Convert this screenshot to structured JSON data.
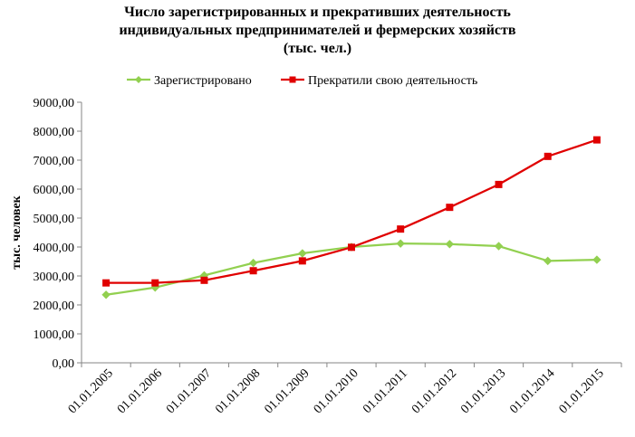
{
  "chart_data": {
    "type": "line",
    "title_lines": [
      "Число зарегистрированных  и прекративших деятельность",
      "индивидуальных предпринимателей и фермерских хозяйств",
      "(тыс. чел.)"
    ],
    "ylabel": "тыс. человек",
    "xlabel": "",
    "ylim": [
      0,
      9000
    ],
    "y_ticks": [
      "0,00",
      "1000,00",
      "2000,00",
      "3000,00",
      "4000,00",
      "5000,00",
      "6000,00",
      "7000,00",
      "8000,00",
      "9000,00"
    ],
    "categories": [
      "01.01.2005",
      "01.01.2006",
      "01.01.2007",
      "01.01.2008",
      "01.01.2009",
      "01.01.2010",
      "01.01.2011",
      "01.01.2012",
      "01.01.2013",
      "01.01.2014",
      "01.01.2015"
    ],
    "legend_position": "top",
    "grid": false,
    "series": [
      {
        "name": "Зарегистрировано",
        "color": "#92D050",
        "marker": "diamond",
        "values": [
          2350,
          2600,
          3020,
          3450,
          3780,
          4000,
          4120,
          4100,
          4030,
          3520,
          3560
        ]
      },
      {
        "name": "Прекратили свою деятельность",
        "color": "#E00000",
        "marker": "square",
        "values": [
          2760,
          2760,
          2850,
          3180,
          3520,
          3990,
          4620,
          5370,
          6160,
          7130,
          7700
        ]
      }
    ]
  }
}
